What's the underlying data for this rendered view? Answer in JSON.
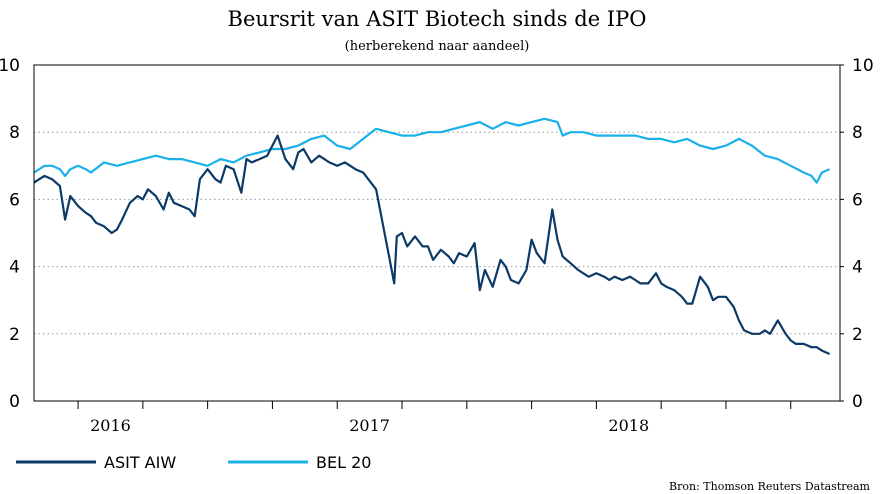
{
  "chart_data": {
    "type": "line",
    "title": "Beursrit van ASIT Biotech sinds de IPO",
    "subtitle": "(herberekend naar aandeel)",
    "source": "Bron: Thomson Reuters Datastream",
    "ylim": [
      0,
      10
    ],
    "yticks": [
      "0",
      "2",
      "4",
      "6",
      "8",
      "10"
    ],
    "secondary_yticks": [
      "0",
      "2",
      "4",
      "6",
      "8",
      "10"
    ],
    "xlabels": [
      "2016",
      "2017",
      "2018"
    ],
    "grid": "horizontal dotted",
    "legend_position": "bottom-left",
    "series": [
      {
        "name": "ASIT AIW",
        "color": "#0b3a66",
        "x": [
          2015.58,
          2015.6,
          2015.62,
          2015.65,
          2015.68,
          2015.7,
          2015.72,
          2015.75,
          2015.78,
          2015.8,
          2015.82,
          2015.85,
          2015.88,
          2015.9,
          2015.92,
          2015.95,
          2015.98,
          2016.0,
          2016.02,
          2016.05,
          2016.08,
          2016.1,
          2016.12,
          2016.15,
          2016.18,
          2016.2,
          2016.22,
          2016.25,
          2016.28,
          2016.3,
          2016.32,
          2016.35,
          2016.38,
          2016.4,
          2016.42,
          2016.45,
          2016.48,
          2016.5,
          2016.52,
          2016.55,
          2016.58,
          2016.6,
          2016.62,
          2016.65,
          2016.68,
          2016.7,
          2016.72,
          2016.75,
          2016.78,
          2016.8,
          2016.82,
          2016.85,
          2016.88,
          2016.9,
          2016.92,
          2016.95,
          2016.97,
          2016.98,
          2017.0,
          2017.02,
          2017.05,
          2017.08,
          2017.1,
          2017.12,
          2017.15,
          2017.18,
          2017.2,
          2017.22,
          2017.25,
          2017.28,
          2017.3,
          2017.32,
          2017.35,
          2017.38,
          2017.4,
          2017.42,
          2017.45,
          2017.48,
          2017.5,
          2017.52,
          2017.55,
          2017.58,
          2017.6,
          2017.62,
          2017.65,
          2017.68,
          2017.7,
          2017.72,
          2017.75,
          2017.78,
          2017.8,
          2017.82,
          2017.85,
          2017.88,
          2017.9,
          2017.92,
          2017.95,
          2017.98,
          2018.0,
          2018.02,
          2018.05,
          2018.08,
          2018.1,
          2018.12,
          2018.15,
          2018.18,
          2018.2,
          2018.22,
          2018.25,
          2018.28,
          2018.3,
          2018.32,
          2018.35,
          2018.38,
          2018.4,
          2018.42,
          2018.45,
          2018.48,
          2018.5,
          2018.52,
          2018.55,
          2018.58,
          2018.6,
          2018.62,
          2018.65
        ],
        "values": [
          6.5,
          6.6,
          6.7,
          6.6,
          6.4,
          5.4,
          6.1,
          5.8,
          5.6,
          5.5,
          5.3,
          5.2,
          5.0,
          5.1,
          5.4,
          5.9,
          6.1,
          6.0,
          6.3,
          6.1,
          5.7,
          6.2,
          5.9,
          5.8,
          5.7,
          5.5,
          6.6,
          6.9,
          6.6,
          6.5,
          7.0,
          6.9,
          6.2,
          7.2,
          7.1,
          7.2,
          7.3,
          7.6,
          7.9,
          7.2,
          6.9,
          7.4,
          7.5,
          7.1,
          7.3,
          7.2,
          7.1,
          7.0,
          7.1,
          7.0,
          6.9,
          6.8,
          6.5,
          6.3,
          5.5,
          4.3,
          3.5,
          4.9,
          5.0,
          4.6,
          4.9,
          4.6,
          4.6,
          4.2,
          4.5,
          4.3,
          4.1,
          4.4,
          4.3,
          4.7,
          3.3,
          3.9,
          3.4,
          4.2,
          4.0,
          3.6,
          3.5,
          3.9,
          4.8,
          4.4,
          4.1,
          5.7,
          4.8,
          4.3,
          4.1,
          3.9,
          3.8,
          3.7,
          3.8,
          3.7,
          3.6,
          3.7,
          3.6,
          3.7,
          3.6,
          3.5,
          3.5,
          3.8,
          3.5,
          3.4,
          3.3,
          3.1,
          2.9,
          2.9,
          3.7,
          3.4,
          3.0,
          3.1,
          3.1,
          2.8,
          2.4,
          2.1,
          2.0,
          2.0,
          2.1,
          2.0,
          2.4,
          2.0,
          1.8,
          1.7,
          1.7,
          1.6,
          1.6,
          1.5,
          1.4
        ]
      },
      {
        "name": "BEL 20",
        "color": "#1ab0e8",
        "x": [
          2015.58,
          2015.6,
          2015.62,
          2015.65,
          2015.68,
          2015.7,
          2015.72,
          2015.75,
          2015.78,
          2015.8,
          2015.85,
          2015.9,
          2015.95,
          2016.0,
          2016.05,
          2016.1,
          2016.15,
          2016.2,
          2016.25,
          2016.3,
          2016.35,
          2016.4,
          2016.45,
          2016.5,
          2016.55,
          2016.6,
          2016.65,
          2016.7,
          2016.75,
          2016.8,
          2016.85,
          2016.9,
          2016.95,
          2017.0,
          2017.05,
          2017.1,
          2017.15,
          2017.2,
          2017.25,
          2017.3,
          2017.35,
          2017.4,
          2017.45,
          2017.5,
          2017.55,
          2017.6,
          2017.62,
          2017.65,
          2017.7,
          2017.75,
          2017.8,
          2017.85,
          2017.9,
          2017.95,
          2018.0,
          2018.05,
          2018.1,
          2018.15,
          2018.2,
          2018.25,
          2018.3,
          2018.35,
          2018.4,
          2018.45,
          2018.5,
          2018.55,
          2018.58,
          2018.6,
          2018.62,
          2018.65
        ],
        "values": [
          6.8,
          6.9,
          7.0,
          7.0,
          6.9,
          6.7,
          6.9,
          7.0,
          6.9,
          6.8,
          7.1,
          7.0,
          7.1,
          7.2,
          7.3,
          7.2,
          7.2,
          7.1,
          7.0,
          7.2,
          7.1,
          7.3,
          7.4,
          7.5,
          7.5,
          7.6,
          7.8,
          7.9,
          7.6,
          7.5,
          7.8,
          8.1,
          8.0,
          7.9,
          7.9,
          8.0,
          8.0,
          8.1,
          8.2,
          8.3,
          8.1,
          8.3,
          8.2,
          8.3,
          8.4,
          8.3,
          7.9,
          8.0,
          8.0,
          7.9,
          7.9,
          7.9,
          7.9,
          7.8,
          7.8,
          7.7,
          7.8,
          7.6,
          7.5,
          7.6,
          7.8,
          7.6,
          7.3,
          7.2,
          7.0,
          6.8,
          6.7,
          6.5,
          6.8,
          6.9
        ]
      }
    ]
  }
}
